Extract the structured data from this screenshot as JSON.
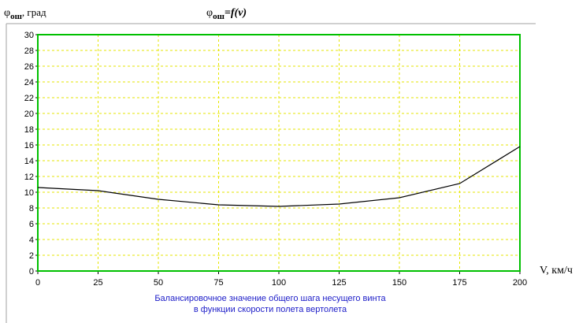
{
  "chart_data": {
    "type": "line",
    "title": {
      "symbol": "φ",
      "subscript": "ош",
      "text": "=f(v)"
    },
    "y_label": {
      "symbol": "φ",
      "subscript": "ош",
      "text": ", град"
    },
    "x_label": "V, км/ч",
    "caption": [
      "Балансировочное значение общего шага несущего винта",
      "в функции скорости полета вертолета"
    ],
    "x": [
      0,
      25,
      50,
      75,
      100,
      125,
      150,
      175,
      200
    ],
    "series": [
      {
        "color": "#000000",
        "values": [
          10.6,
          10.2,
          9.1,
          8.4,
          8.2,
          8.5,
          9.3,
          11.1,
          15.8
        ]
      }
    ],
    "xlim": [
      0,
      200
    ],
    "xticks": [
      0,
      25,
      50,
      75,
      100,
      125,
      150,
      175,
      200
    ],
    "ylim": [
      0,
      30
    ],
    "yticks": [
      0,
      2,
      4,
      6,
      8,
      10,
      12,
      14,
      16,
      18,
      20,
      22,
      24,
      26,
      28,
      30
    ],
    "grid": true,
    "grid_color": "#e6e600",
    "frame_color": "#00c000"
  }
}
